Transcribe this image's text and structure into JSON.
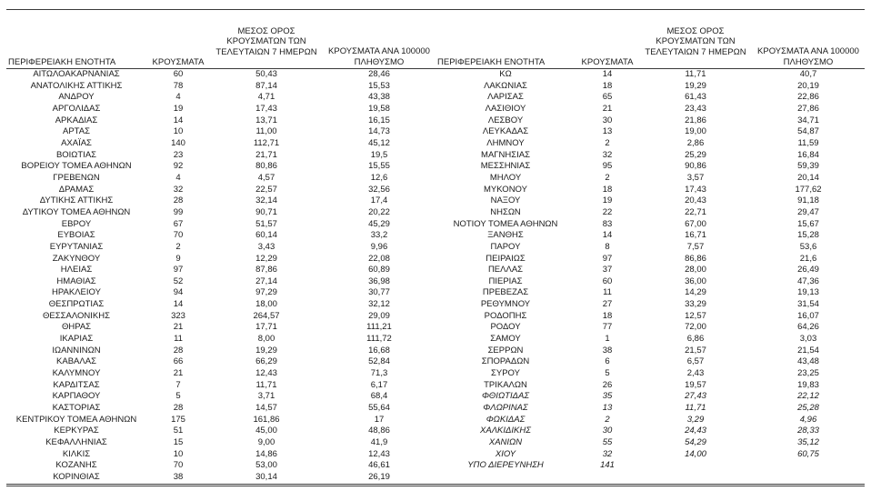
{
  "table": {
    "headers": {
      "region": "ΠΕΡΙΦΕΡΕΙΑΚΗ ΕΝΟΤΗΤΑ",
      "cases": "ΚΡΟΥΣΜΑΤΑ",
      "avg7": "ΜΕΣΟΣ ΟΡΟΣ\nΚΡΟΥΣΜΑΤΩΝ ΤΩΝ\nΤΕΛΕΥΤΑΙΩΝ 7 ΗΜΕΡΩΝ",
      "per100k": "ΚΡΟΥΣΜΑΤΑ ΑΝΑ 100000\nΠΛΗΘΥΣΜΟ"
    },
    "left_rows": [
      {
        "region": "ΑΙΤΩΛΟΑΚΑΡΝΑΝΙΑΣ",
        "cases": "60",
        "avg7": "50,43",
        "per100k": "28,46"
      },
      {
        "region": "ΑΝΑΤΟΛΙΚΗΣ ΑΤΤΙΚΗΣ",
        "cases": "78",
        "avg7": "87,14",
        "per100k": "15,53"
      },
      {
        "region": "ΑΝΔΡΟΥ",
        "cases": "4",
        "avg7": "4,71",
        "per100k": "43,38"
      },
      {
        "region": "ΑΡΓΟΛΙΔΑΣ",
        "cases": "19",
        "avg7": "17,43",
        "per100k": "19,58"
      },
      {
        "region": "ΑΡΚΑΔΙΑΣ",
        "cases": "14",
        "avg7": "13,71",
        "per100k": "16,15"
      },
      {
        "region": "ΑΡΤΑΣ",
        "cases": "10",
        "avg7": "11,00",
        "per100k": "14,73"
      },
      {
        "region": "ΑΧΑΪΑΣ",
        "cases": "140",
        "avg7": "112,71",
        "per100k": "45,12"
      },
      {
        "region": "ΒΟΙΩΤΙΑΣ",
        "cases": "23",
        "avg7": "21,71",
        "per100k": "19,5"
      },
      {
        "region": "ΒΟΡΕΙΟΥ ΤΟΜΕΑ ΑΘΗΝΩΝ",
        "cases": "92",
        "avg7": "80,86",
        "per100k": "15,55"
      },
      {
        "region": "ΓΡΕΒΕΝΩΝ",
        "cases": "4",
        "avg7": "4,57",
        "per100k": "12,6"
      },
      {
        "region": "ΔΡΑΜΑΣ",
        "cases": "32",
        "avg7": "22,57",
        "per100k": "32,56"
      },
      {
        "region": "ΔΥΤΙΚΗΣ ΑΤΤΙΚΗΣ",
        "cases": "28",
        "avg7": "32,14",
        "per100k": "17,4"
      },
      {
        "region": "ΔΥΤΙΚΟΥ ΤΟΜΕΑ ΑΘΗΝΩΝ",
        "cases": "99",
        "avg7": "90,71",
        "per100k": "20,22"
      },
      {
        "region": "ΕΒΡΟΥ",
        "cases": "67",
        "avg7": "51,57",
        "per100k": "45,29"
      },
      {
        "region": "ΕΥΒΟΙΑΣ",
        "cases": "70",
        "avg7": "60,14",
        "per100k": "33,2"
      },
      {
        "region": "ΕΥΡΥΤΑΝΙΑΣ",
        "cases": "2",
        "avg7": "3,43",
        "per100k": "9,96"
      },
      {
        "region": "ΖΑΚΥΝΘΟΥ",
        "cases": "9",
        "avg7": "12,29",
        "per100k": "22,08"
      },
      {
        "region": "ΗΛΕΙΑΣ",
        "cases": "97",
        "avg7": "87,86",
        "per100k": "60,89"
      },
      {
        "region": "ΗΜΑΘΙΑΣ",
        "cases": "52",
        "avg7": "27,14",
        "per100k": "36,98"
      },
      {
        "region": "ΗΡΑΚΛΕΙΟΥ",
        "cases": "94",
        "avg7": "97,29",
        "per100k": "30,77"
      },
      {
        "region": "ΘΕΣΠΡΩΤΙΑΣ",
        "cases": "14",
        "avg7": "18,00",
        "per100k": "32,12"
      },
      {
        "region": "ΘΕΣΣΑΛΟΝΙΚΗΣ",
        "cases": "323",
        "avg7": "264,57",
        "per100k": "29,09"
      },
      {
        "region": "ΘΗΡΑΣ",
        "cases": "21",
        "avg7": "17,71",
        "per100k": "111,21"
      },
      {
        "region": "ΙΚΑΡΙΑΣ",
        "cases": "11",
        "avg7": "8,00",
        "per100k": "111,72"
      },
      {
        "region": "ΙΩΑΝΝΙΝΩΝ",
        "cases": "28",
        "avg7": "19,29",
        "per100k": "16,68"
      },
      {
        "region": "ΚΑΒΑΛΑΣ",
        "cases": "66",
        "avg7": "66,29",
        "per100k": "52,84"
      },
      {
        "region": "ΚΑΛΥΜΝΟΥ",
        "cases": "21",
        "avg7": "12,43",
        "per100k": "71,3"
      },
      {
        "region": "ΚΑΡΔΙΤΣΑΣ",
        "cases": "7",
        "avg7": "11,71",
        "per100k": "6,17"
      },
      {
        "region": "ΚΑΡΠΑΘΟΥ",
        "cases": "5",
        "avg7": "3,71",
        "per100k": "68,4"
      },
      {
        "region": "ΚΑΣΤΟΡΙΑΣ",
        "cases": "28",
        "avg7": "14,57",
        "per100k": "55,64"
      },
      {
        "region": "ΚΕΝΤΡΙΚΟΥ ΤΟΜΕΑ ΑΘΗΝΩΝ",
        "cases": "175",
        "avg7": "161,86",
        "per100k": "17"
      },
      {
        "region": "ΚΕΡΚΥΡΑΣ",
        "cases": "51",
        "avg7": "45,00",
        "per100k": "48,86"
      },
      {
        "region": "ΚΕΦΑΛΛΗΝΙΑΣ",
        "cases": "15",
        "avg7": "9,00",
        "per100k": "41,9"
      },
      {
        "region": "ΚΙΛΚΙΣ",
        "cases": "10",
        "avg7": "14,86",
        "per100k": "12,43"
      },
      {
        "region": "ΚΟΖΑΝΗΣ",
        "cases": "70",
        "avg7": "53,00",
        "per100k": "46,61"
      },
      {
        "region": "ΚΟΡΙΝΘΙΑΣ",
        "cases": "38",
        "avg7": "30,14",
        "per100k": "26,19"
      }
    ],
    "right_rows": [
      {
        "region": "ΚΩ",
        "cases": "14",
        "avg7": "11,71",
        "per100k": "40,7"
      },
      {
        "region": "ΛΑΚΩΝΙΑΣ",
        "cases": "18",
        "avg7": "19,29",
        "per100k": "20,19"
      },
      {
        "region": "ΛΑΡΙΣΑΣ",
        "cases": "65",
        "avg7": "61,43",
        "per100k": "22,86"
      },
      {
        "region": "ΛΑΣΙΘΙΟΥ",
        "cases": "21",
        "avg7": "23,43",
        "per100k": "27,86"
      },
      {
        "region": "ΛΕΣΒΟΥ",
        "cases": "30",
        "avg7": "21,86",
        "per100k": "34,71"
      },
      {
        "region": "ΛΕΥΚΑΔΑΣ",
        "cases": "13",
        "avg7": "19,00",
        "per100k": "54,87"
      },
      {
        "region": "ΛΗΜΝΟΥ",
        "cases": "2",
        "avg7": "2,86",
        "per100k": "11,59"
      },
      {
        "region": "ΜΑΓΝΗΣΙΑΣ",
        "cases": "32",
        "avg7": "25,29",
        "per100k": "16,84"
      },
      {
        "region": "ΜΕΣΣΗΝΙΑΣ",
        "cases": "95",
        "avg7": "90,86",
        "per100k": "59,39"
      },
      {
        "region": "ΜΗΛΟΥ",
        "cases": "2",
        "avg7": "3,57",
        "per100k": "20,14"
      },
      {
        "region": "ΜΥΚΟΝΟΥ",
        "cases": "18",
        "avg7": "17,43",
        "per100k": "177,62"
      },
      {
        "region": "ΝΑΞΟΥ",
        "cases": "19",
        "avg7": "20,43",
        "per100k": "91,18"
      },
      {
        "region": "ΝΗΣΩΝ",
        "cases": "22",
        "avg7": "22,71",
        "per100k": "29,47"
      },
      {
        "region": "ΝΟΤΙΟΥ ΤΟΜΕΑ ΑΘΗΝΩΝ",
        "cases": "83",
        "avg7": "67,00",
        "per100k": "15,67"
      },
      {
        "region": "ΞΑΝΘΗΣ",
        "cases": "14",
        "avg7": "16,71",
        "per100k": "15,28"
      },
      {
        "region": "ΠΑΡΟΥ",
        "cases": "8",
        "avg7": "7,57",
        "per100k": "53,6"
      },
      {
        "region": "ΠΕΙΡΑΙΩΣ",
        "cases": "97",
        "avg7": "86,86",
        "per100k": "21,6"
      },
      {
        "region": "ΠΕΛΛΑΣ",
        "cases": "37",
        "avg7": "28,00",
        "per100k": "26,49"
      },
      {
        "region": "ΠΙΕΡΙΑΣ",
        "cases": "60",
        "avg7": "36,00",
        "per100k": "47,36"
      },
      {
        "region": "ΠΡΕΒΕΖΑΣ",
        "cases": "11",
        "avg7": "14,29",
        "per100k": "19,13"
      },
      {
        "region": "ΡΕΘΥΜΝΟΥ",
        "cases": "27",
        "avg7": "33,29",
        "per100k": "31,54"
      },
      {
        "region": "ΡΟΔΟΠΗΣ",
        "cases": "18",
        "avg7": "12,57",
        "per100k": "16,07"
      },
      {
        "region": "ΡΟΔΟΥ",
        "cases": "77",
        "avg7": "72,00",
        "per100k": "64,26"
      },
      {
        "region": "ΣΑΜΟΥ",
        "cases": "1",
        "avg7": "6,86",
        "per100k": "3,03"
      },
      {
        "region": "ΣΕΡΡΩΝ",
        "cases": "38",
        "avg7": "21,57",
        "per100k": "21,54"
      },
      {
        "region": "ΣΠΟΡΑΔΩΝ",
        "cases": "6",
        "avg7": "6,57",
        "per100k": "43,48"
      },
      {
        "region": "ΣΥΡΟΥ",
        "cases": "5",
        "avg7": "2,43",
        "per100k": "23,25"
      },
      {
        "region": "ΤΡΙΚΑΛΩΝ",
        "cases": "26",
        "avg7": "19,57",
        "per100k": "19,83"
      },
      {
        "region": "ΦΘΙΩΤΙΔΑΣ",
        "cases": "35",
        "avg7": "27,43",
        "per100k": "22,12",
        "italic": true
      },
      {
        "region": "ΦΛΩΡΙΝΑΣ",
        "cases": "13",
        "avg7": "11,71",
        "per100k": "25,28",
        "italic": true
      },
      {
        "region": "ΦΩΚΙΔΑΣ",
        "cases": "2",
        "avg7": "3,29",
        "per100k": "4,96",
        "italic": true
      },
      {
        "region": "ΧΑΛΚΙΔΙΚΗΣ",
        "cases": "30",
        "avg7": "24,43",
        "per100k": "28,33",
        "italic": true
      },
      {
        "region": "ΧΑΝΙΩΝ",
        "cases": "55",
        "avg7": "54,29",
        "per100k": "35,12",
        "italic": true
      },
      {
        "region": "ΧΙΟΥ",
        "cases": "32",
        "avg7": "14,00",
        "per100k": "60,75",
        "italic": true
      },
      {
        "region": "ΥΠΟ ΔΙΕΡΕΥΝΗΣΗ",
        "cases": "141",
        "avg7": "",
        "per100k": "",
        "italic": true
      }
    ]
  }
}
